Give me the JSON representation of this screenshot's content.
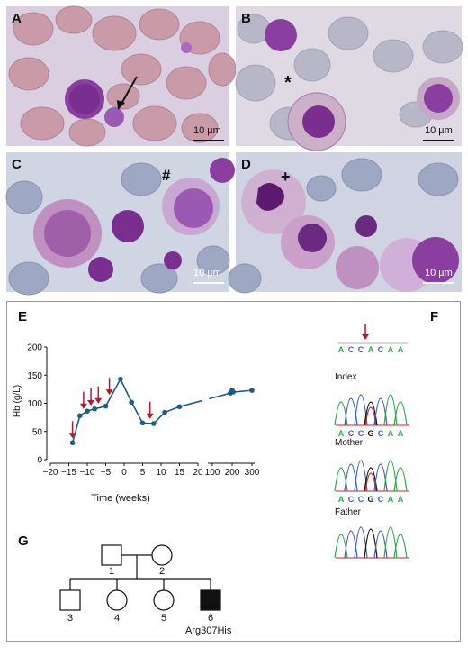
{
  "panels": {
    "A": {
      "label": "A",
      "scale": "10 µm"
    },
    "B": {
      "label": "B",
      "scale": "10 µm",
      "marker": "*"
    },
    "C": {
      "label": "C",
      "scale": "10 µm",
      "marker": "#"
    },
    "D": {
      "label": "D",
      "scale": "10 µm",
      "marker": "+"
    },
    "E": {
      "label": "E"
    },
    "F": {
      "label": "F"
    },
    "G": {
      "label": "G"
    }
  },
  "chart_data": {
    "type": "line",
    "xlabel": "Time (weeks)",
    "ylabel": "Hb (g/L)",
    "ylim": [
      0,
      200
    ],
    "yticks": [
      "0",
      "50",
      "100",
      "150",
      "200"
    ],
    "xticks_left": [
      "−20",
      "−15",
      "−10",
      "−5",
      "0",
      "5",
      "10",
      "15",
      "20"
    ],
    "xticks_right": [
      "100",
      "200",
      "300"
    ],
    "series": [
      {
        "segment": "early",
        "x": [
          -14,
          -12,
          -10,
          -8,
          -5,
          -1,
          2,
          5,
          8,
          11,
          15
        ],
        "y": [
          30,
          78,
          86,
          90,
          95,
          143,
          102,
          65,
          64,
          84,
          94
        ]
      },
      {
        "segment": "late",
        "x": [
          190,
          200,
          205,
          300
        ],
        "y": [
          118,
          123,
          120,
          123
        ]
      }
    ],
    "transfusion_arrows_x": [
      -14,
      -11,
      -9,
      -7,
      -4,
      7
    ],
    "grid": false
  },
  "sequencing": {
    "reference": [
      "A",
      "C",
      "C",
      "A",
      "C",
      "A",
      "A"
    ],
    "tracks": [
      {
        "label": "Index",
        "bases": [
          "A",
          "C",
          "C",
          "G",
          "C",
          "A",
          "A"
        ]
      },
      {
        "label": "Mother",
        "bases": [
          "A",
          "C",
          "C",
          "G",
          "C",
          "A",
          "A"
        ]
      },
      {
        "label": "Father",
        "bases": []
      }
    ]
  },
  "pedigree": {
    "members": [
      {
        "id": "1",
        "sex": "male",
        "affected": false
      },
      {
        "id": "2",
        "sex": "female",
        "affected": false
      },
      {
        "id": "3",
        "sex": "male",
        "affected": false
      },
      {
        "id": "4",
        "sex": "female",
        "affected": false
      },
      {
        "id": "5",
        "sex": "female",
        "affected": false
      },
      {
        "id": "6",
        "sex": "male",
        "affected": true
      }
    ],
    "variant": "Arg307His"
  }
}
